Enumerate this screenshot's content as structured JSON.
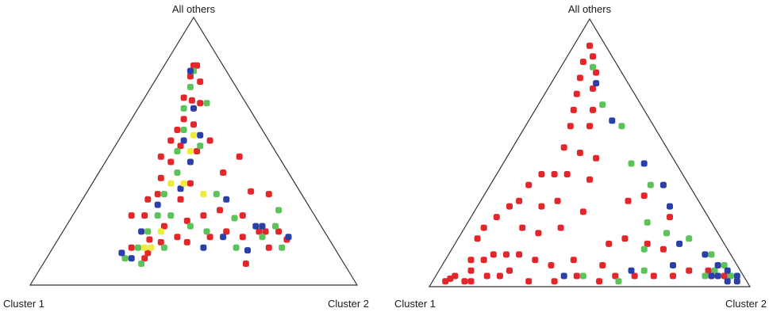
{
  "colors": {
    "red": "#e2262a",
    "green": "#5cc25a",
    "blue": "#2b3fa8",
    "yellow": "#ecec3a",
    "frame": "#333333"
  },
  "chart_data": [
    {
      "type": "scatter",
      "title": "",
      "vertex_labels": {
        "top": "All others",
        "left": "Cluster 1",
        "right": "Cluster 2"
      },
      "note": "Ternary plot; each point = (Cluster 1 share, Cluster 2 share, All others share); colors are point groups",
      "series": [
        {
          "color": "red",
          "points": [
            [
              0.09,
              0.09,
              0.82
            ],
            [
              0.08,
              0.1,
              0.82
            ],
            [
              0.12,
              0.1,
              0.78
            ],
            [
              0.1,
              0.14,
              0.76
            ],
            [
              0.18,
              0.12,
              0.7
            ],
            [
              0.16,
              0.15,
              0.69
            ],
            [
              0.14,
              0.18,
              0.68
            ],
            [
              0.22,
              0.16,
              0.62
            ],
            [
              0.2,
              0.2,
              0.6
            ],
            [
              0.26,
              0.16,
              0.58
            ],
            [
              0.3,
              0.16,
              0.54
            ],
            [
              0.28,
              0.2,
              0.52
            ],
            [
              0.24,
              0.26,
              0.5
            ],
            [
              0.18,
              0.28,
              0.54
            ],
            [
              0.34,
              0.2,
              0.46
            ],
            [
              0.36,
              0.16,
              0.48
            ],
            [
              0.32,
              0.3,
              0.38
            ],
            [
              0.4,
              0.2,
              0.4
            ],
            [
              0.44,
              0.22,
              0.34
            ],
            [
              0.38,
              0.3,
              0.32
            ],
            [
              0.48,
              0.2,
              0.32
            ],
            [
              0.52,
              0.22,
              0.26
            ],
            [
              0.48,
              0.3,
              0.22
            ],
            [
              0.56,
              0.18,
              0.26
            ],
            [
              0.55,
              0.28,
              0.17
            ],
            [
              0.4,
              0.36,
              0.24
            ],
            [
              0.34,
              0.4,
              0.26
            ],
            [
              0.28,
              0.44,
              0.28
            ],
            [
              0.3,
              0.5,
              0.2
            ],
            [
              0.22,
              0.52,
              0.26
            ],
            [
              0.26,
              0.56,
              0.18
            ],
            [
              0.2,
              0.6,
              0.2
            ],
            [
              0.18,
              0.62,
              0.2
            ],
            [
              0.14,
              0.66,
              0.2
            ],
            [
              0.13,
              0.7,
              0.17
            ],
            [
              0.2,
              0.66,
              0.14
            ],
            [
              0.3,
              0.62,
              0.08
            ],
            [
              0.52,
              0.32,
              0.16
            ],
            [
              0.46,
              0.36,
              0.18
            ],
            [
              0.44,
              0.4,
              0.16
            ],
            [
              0.36,
              0.46,
              0.18
            ],
            [
              0.58,
              0.3,
              0.12
            ],
            [
              0.62,
              0.24,
              0.14
            ],
            [
              0.6,
              0.3,
              0.1
            ],
            [
              0.12,
              0.4,
              0.48
            ],
            [
              0.2,
              0.38,
              0.42
            ],
            [
              0.15,
              0.5,
              0.35
            ],
            [
              0.1,
              0.56,
              0.34
            ]
          ]
        },
        {
          "color": "green",
          "points": [
            [
              0.1,
              0.1,
              0.8
            ],
            [
              0.14,
              0.12,
              0.74
            ],
            [
              0.2,
              0.14,
              0.66
            ],
            [
              0.12,
              0.2,
              0.68
            ],
            [
              0.24,
              0.18,
              0.58
            ],
            [
              0.3,
              0.2,
              0.5
            ],
            [
              0.22,
              0.26,
              0.52
            ],
            [
              0.34,
              0.24,
              0.42
            ],
            [
              0.42,
              0.24,
              0.34
            ],
            [
              0.48,
              0.26,
              0.26
            ],
            [
              0.44,
              0.3,
              0.26
            ],
            [
              0.54,
              0.26,
              0.2
            ],
            [
              0.6,
              0.26,
              0.14
            ],
            [
              0.52,
              0.34,
              0.14
            ],
            [
              0.14,
              0.64,
              0.22
            ],
            [
              0.2,
              0.62,
              0.18
            ],
            [
              0.25,
              0.5,
              0.25
            ],
            [
              0.3,
              0.56,
              0.14
            ],
            [
              0.16,
              0.7,
              0.14
            ],
            [
              0.1,
              0.62,
              0.28
            ],
            [
              0.36,
              0.44,
              0.2
            ],
            [
              0.4,
              0.38,
              0.22
            ],
            [
              0.26,
              0.4,
              0.34
            ],
            [
              0.66,
              0.24,
              0.1
            ],
            [
              0.62,
              0.3,
              0.08
            ]
          ]
        },
        {
          "color": "blue",
          "points": [
            [
              0.11,
              0.09,
              0.8
            ],
            [
              0.17,
              0.17,
              0.66
            ],
            [
              0.26,
              0.2,
              0.54
            ],
            [
              0.2,
              0.24,
              0.56
            ],
            [
              0.28,
              0.26,
              0.46
            ],
            [
              0.36,
              0.28,
              0.36
            ],
            [
              0.46,
              0.24,
              0.3
            ],
            [
              0.56,
              0.24,
              0.2
            ],
            [
              0.64,
              0.26,
              0.1
            ],
            [
              0.66,
              0.22,
              0.12
            ],
            [
              0.2,
              0.58,
              0.22
            ],
            [
              0.27,
              0.6,
              0.13
            ],
            [
              0.12,
              0.7,
              0.18
            ],
            [
              0.24,
              0.44,
              0.32
            ],
            [
              0.32,
              0.5,
              0.18
            ],
            [
              0.4,
              0.46,
              0.14
            ],
            [
              0.18,
              0.6,
              0.22
            ]
          ]
        },
        {
          "color": "yellow",
          "points": [
            [
              0.22,
              0.22,
              0.56
            ],
            [
              0.26,
              0.24,
              0.5
            ],
            [
              0.34,
              0.28,
              0.38
            ],
            [
              0.38,
              0.24,
              0.38
            ],
            [
              0.5,
              0.3,
              0.2
            ],
            [
              0.56,
              0.3,
              0.14
            ],
            [
              0.3,
              0.36,
              0.34
            ],
            [
              0.58,
              0.28,
              0.14
            ]
          ]
        }
      ]
    },
    {
      "type": "scatter",
      "title": "",
      "vertex_labels": {
        "top": "All others",
        "left": "Cluster 1",
        "right": "Cluster 2"
      },
      "note": "Ternary plot; each point = (Cluster 1 share, Cluster 2 share, All others share); colors are point groups",
      "series": [
        {
          "color": "red",
          "points": [
            [
              0.05,
              0.05,
              0.9
            ],
            [
              0.06,
              0.08,
              0.86
            ],
            [
              0.1,
              0.06,
              0.84
            ],
            [
              0.08,
              0.12,
              0.8
            ],
            [
              0.14,
              0.08,
              0.78
            ],
            [
              0.12,
              0.14,
              0.74
            ],
            [
              0.18,
              0.1,
              0.72
            ],
            [
              0.16,
              0.18,
              0.66
            ],
            [
              0.22,
              0.12,
              0.66
            ],
            [
              0.2,
              0.2,
              0.6
            ],
            [
              0.26,
              0.14,
              0.6
            ],
            [
              0.28,
              0.22,
              0.5
            ],
            [
              0.24,
              0.28,
              0.48
            ],
            [
              0.32,
              0.16,
              0.52
            ],
            [
              0.36,
              0.22,
              0.42
            ],
            [
              0.3,
              0.3,
              0.4
            ],
            [
              0.4,
              0.18,
              0.42
            ],
            [
              0.44,
              0.24,
              0.32
            ],
            [
              0.38,
              0.34,
              0.28
            ],
            [
              0.5,
              0.2,
              0.3
            ],
            [
              0.48,
              0.3,
              0.22
            ],
            [
              0.56,
              0.24,
              0.2
            ],
            [
              0.6,
              0.18,
              0.22
            ],
            [
              0.62,
              0.28,
              0.1
            ],
            [
              0.58,
              0.34,
              0.08
            ],
            [
              0.66,
              0.22,
              0.12
            ],
            [
              0.7,
              0.18,
              0.12
            ],
            [
              0.74,
              0.14,
              0.12
            ],
            [
              0.72,
              0.22,
              0.06
            ],
            [
              0.78,
              0.12,
              0.1
            ],
            [
              0.8,
              0.16,
              0.04
            ],
            [
              0.84,
              0.1,
              0.06
            ],
            [
              0.86,
              0.12,
              0.02
            ],
            [
              0.9,
              0.06,
              0.04
            ],
            [
              0.92,
              0.05,
              0.03
            ],
            [
              0.94,
              0.04,
              0.02
            ],
            [
              0.88,
              0.1,
              0.02
            ],
            [
              0.82,
              0.08,
              0.1
            ],
            [
              0.76,
              0.2,
              0.04
            ],
            [
              0.68,
              0.3,
              0.02
            ],
            [
              0.6,
              0.38,
              0.02
            ],
            [
              0.52,
              0.44,
              0.04
            ],
            [
              0.46,
              0.52,
              0.02
            ],
            [
              0.4,
              0.56,
              0.04
            ],
            [
              0.34,
              0.62,
              0.04
            ],
            [
              0.28,
              0.68,
              0.04
            ],
            [
              0.22,
              0.74,
              0.04
            ],
            [
              0.16,
              0.78,
              0.06
            ],
            [
              0.1,
              0.84,
              0.06
            ],
            [
              0.06,
              0.9,
              0.04
            ],
            [
              0.3,
              0.52,
              0.18
            ],
            [
              0.24,
              0.6,
              0.16
            ],
            [
              0.2,
              0.66,
              0.14
            ],
            [
              0.36,
              0.48,
              0.16
            ],
            [
              0.42,
              0.5,
              0.08
            ],
            [
              0.5,
              0.4,
              0.1
            ],
            [
              0.56,
              0.12,
              0.32
            ],
            [
              0.5,
              0.12,
              0.38
            ],
            [
              0.6,
              0.1,
              0.3
            ],
            [
              0.66,
              0.08,
              0.26
            ],
            [
              0.72,
              0.06,
              0.22
            ],
            [
              0.76,
              0.06,
              0.18
            ],
            [
              0.44,
              0.14,
              0.42
            ],
            [
              0.16,
              0.5,
              0.34
            ],
            [
              0.22,
              0.46,
              0.32
            ],
            [
              0.12,
              0.62,
              0.26
            ]
          ]
        },
        {
          "color": "green",
          "points": [
            [
              0.08,
              0.1,
              0.82
            ],
            [
              0.12,
              0.2,
              0.68
            ],
            [
              0.1,
              0.3,
              0.6
            ],
            [
              0.14,
              0.4,
              0.46
            ],
            [
              0.12,
              0.5,
              0.38
            ],
            [
              0.2,
              0.56,
              0.24
            ],
            [
              0.16,
              0.64,
              0.2
            ],
            [
              0.1,
              0.72,
              0.18
            ],
            [
              0.06,
              0.82,
              0.12
            ],
            [
              0.04,
              0.88,
              0.08
            ],
            [
              0.08,
              0.86,
              0.06
            ],
            [
              0.12,
              0.84,
              0.04
            ],
            [
              0.04,
              0.92,
              0.04
            ],
            [
              0.3,
              0.64,
              0.06
            ],
            [
              0.4,
              0.58,
              0.02
            ],
            [
              0.5,
              0.46,
              0.04
            ],
            [
              0.26,
              0.6,
              0.14
            ]
          ]
        },
        {
          "color": "blue",
          "points": [
            [
              0.1,
              0.14,
              0.76
            ],
            [
              0.12,
              0.26,
              0.62
            ],
            [
              0.1,
              0.44,
              0.46
            ],
            [
              0.08,
              0.54,
              0.38
            ],
            [
              0.1,
              0.6,
              0.3
            ],
            [
              0.14,
              0.7,
              0.16
            ],
            [
              0.08,
              0.8,
              0.12
            ],
            [
              0.06,
              0.86,
              0.08
            ],
            [
              0.04,
              0.9,
              0.06
            ],
            [
              0.02,
              0.94,
              0.04
            ],
            [
              0.06,
              0.92,
              0.02
            ],
            [
              0.1,
              0.86,
              0.04
            ],
            [
              0.03,
              0.95,
              0.02
            ],
            [
              0.08,
              0.88,
              0.04
            ],
            [
              0.34,
              0.6,
              0.06
            ],
            [
              0.56,
              0.4,
              0.04
            ],
            [
              0.2,
              0.72,
              0.08
            ]
          ]
        }
      ]
    }
  ]
}
